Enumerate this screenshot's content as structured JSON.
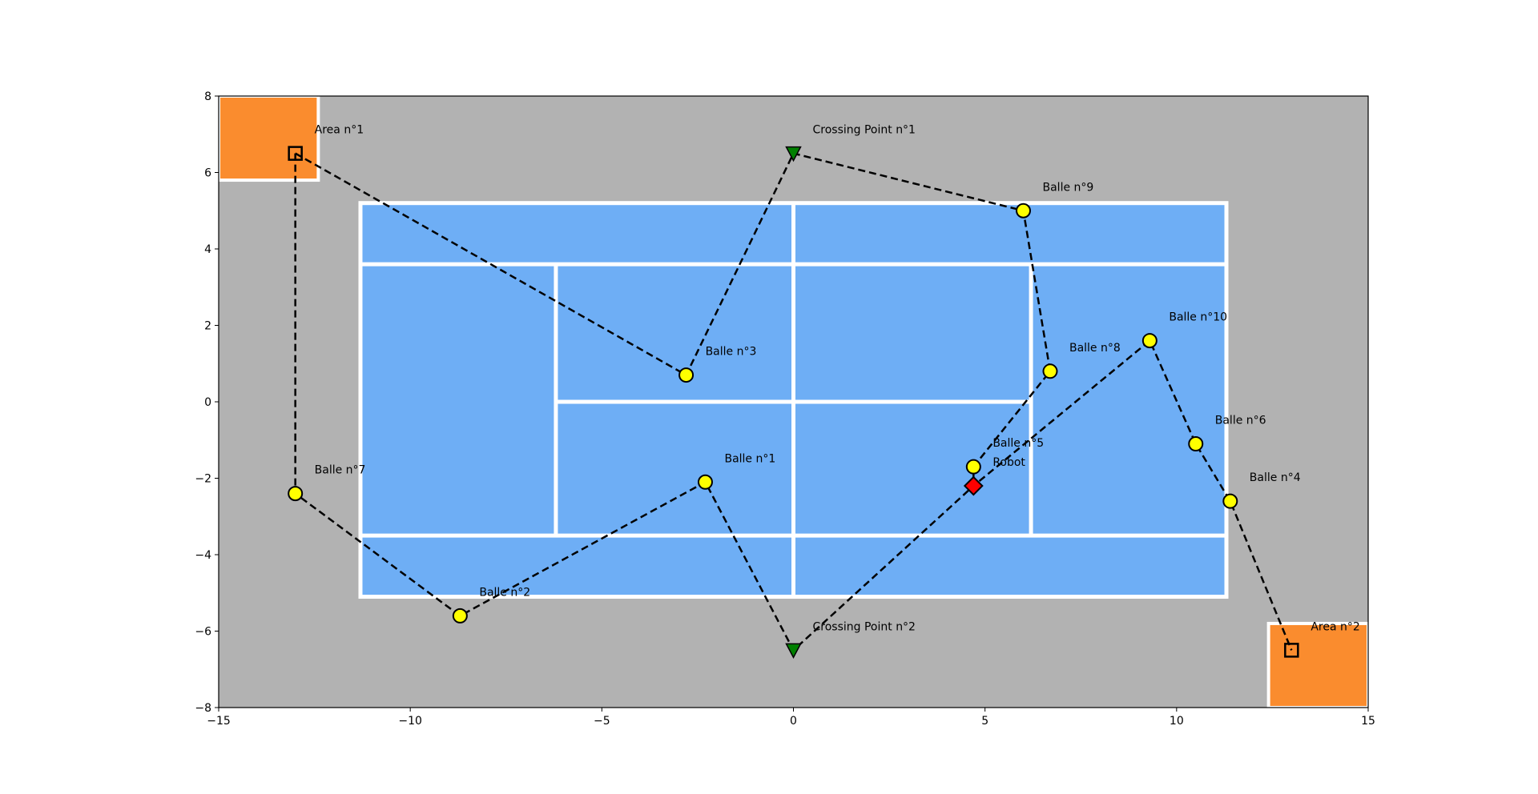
{
  "chart_data": {
    "type": "scatter",
    "title": "",
    "xlabel": "",
    "ylabel": "",
    "xlim": [
      -15,
      15
    ],
    "ylim": [
      -8,
      8
    ],
    "xticks": [
      -15,
      -10,
      -5,
      0,
      5,
      10,
      15
    ],
    "yticks": [
      -8,
      -6,
      -4,
      -2,
      0,
      2,
      4,
      6,
      8
    ],
    "xtick_labels": [
      "−15",
      "−10",
      "−5",
      "0",
      "5",
      "10",
      "15"
    ],
    "ytick_labels": [
      "−8",
      "−6",
      "−4",
      "−2",
      "0",
      "2",
      "4",
      "6",
      "8"
    ],
    "grid": false,
    "legend": "none",
    "colors": {
      "ground": "#b2b2b2",
      "court": "#6eaef5",
      "court_lines": "#ffffff",
      "area": "#fa8c2e",
      "ball": "#ffff00",
      "robot": "#ff0000",
      "crossing": "#008000",
      "path": "#000000"
    },
    "court": {
      "outer": [
        [
          -11.3,
          -5.1
        ],
        [
          11.3,
          5.2
        ]
      ],
      "singles_y": [
        -3.5,
        3.6
      ],
      "service_x": [
        -6.2,
        6.2
      ],
      "net_x": 0,
      "center_y": 0
    },
    "areas": [
      {
        "label": "Area n°1",
        "x": -13,
        "y": 6.5,
        "zone": [
          [
            -15,
            5.8
          ],
          [
            -12.4,
            8
          ]
        ]
      },
      {
        "label": "Area n°2",
        "x": 13,
        "y": -6.5,
        "zone": [
          [
            12.4,
            -8
          ],
          [
            15,
            -5.8
          ]
        ]
      }
    ],
    "crossing_points": [
      {
        "label": "Crossing Point n°1",
        "x": 0,
        "y": 6.5
      },
      {
        "label": "Crossing Point n°2",
        "x": 0,
        "y": -6.5
      }
    ],
    "robot": {
      "label": "Robot",
      "x": 4.7,
      "y": -2.2
    },
    "balls": [
      {
        "label": "Balle n°1",
        "x": -2.3,
        "y": -2.1
      },
      {
        "label": "Balle n°2",
        "x": -8.7,
        "y": -5.6
      },
      {
        "label": "Balle n°3",
        "x": -2.8,
        "y": 0.7
      },
      {
        "label": "Balle n°4",
        "x": 11.4,
        "y": -2.6
      },
      {
        "label": "Balle n°5",
        "x": 4.7,
        "y": -1.7
      },
      {
        "label": "Balle n°6",
        "x": 10.5,
        "y": -1.1
      },
      {
        "label": "Balle n°7",
        "x": -13,
        "y": -2.4
      },
      {
        "label": "Balle n°8",
        "x": 6.7,
        "y": 0.8
      },
      {
        "label": "Balle n°9",
        "x": 6.0,
        "y": 5.0
      },
      {
        "label": "Balle n°10",
        "x": 9.3,
        "y": 1.6
      }
    ],
    "path": [
      [
        -13,
        6.5
      ],
      [
        -2.8,
        0.7
      ],
      [
        0,
        6.5
      ],
      [
        6.0,
        5.0
      ],
      [
        6.7,
        0.8
      ],
      [
        4.7,
        -1.7
      ],
      [
        4.7,
        -2.2
      ],
      [
        9.3,
        1.6
      ],
      [
        10.5,
        -1.1
      ],
      [
        11.4,
        -2.6
      ],
      [
        13,
        -6.5
      ]
    ],
    "path2": [
      [
        -13,
        6.5
      ],
      [
        -13,
        -2.4
      ],
      [
        -8.7,
        -5.6
      ],
      [
        -2.3,
        -2.1
      ],
      [
        0,
        -6.5
      ],
      [
        4.7,
        -2.2
      ]
    ]
  }
}
